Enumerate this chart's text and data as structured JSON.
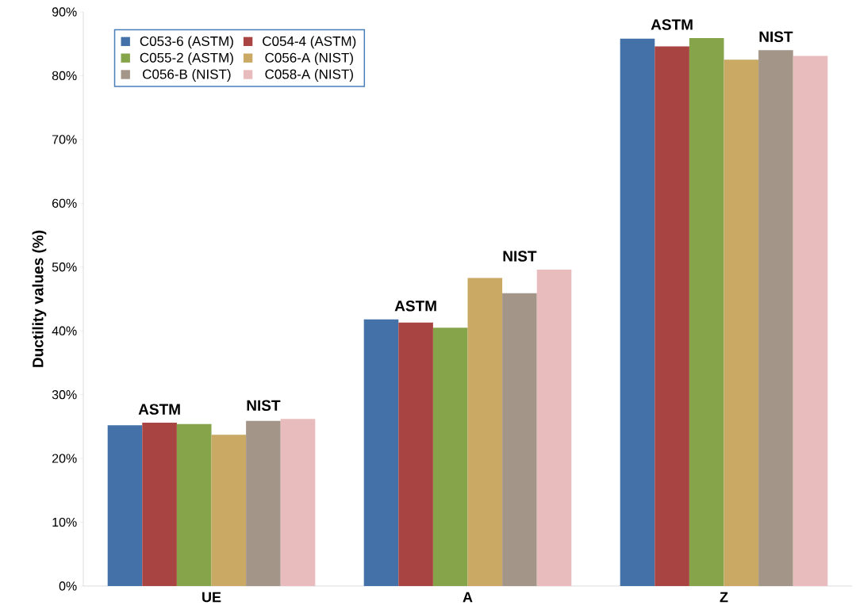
{
  "chart_data": {
    "type": "bar",
    "ylabel": "Ductility values (%)",
    "categories": [
      "UE",
      "A",
      "Z"
    ],
    "series": [
      {
        "name": "C053-6 (ASTM)",
        "color": "#4472a8",
        "values": [
          25.2,
          41.8,
          85.8
        ]
      },
      {
        "name": "C054-4 (ASTM)",
        "color": "#a84442",
        "values": [
          25.6,
          41.3,
          84.6
        ]
      },
      {
        "name": "C055-2 (ASTM)",
        "color": "#86a44a",
        "values": [
          25.4,
          40.5,
          85.9
        ]
      },
      {
        "name": "C056-A (NIST)",
        "color": "#c9a964",
        "values": [
          23.7,
          48.3,
          82.5
        ]
      },
      {
        "name": "C056-B (NIST)",
        "color": "#a39588",
        "values": [
          25.9,
          45.9,
          84.0
        ]
      },
      {
        "name": "C058-A (NIST)",
        "color": "#e8bcbc",
        "values": [
          26.2,
          49.6,
          83.1
        ]
      }
    ],
    "ylim": [
      0,
      90
    ],
    "yticks": [
      {
        "value": 0,
        "label": "0%"
      },
      {
        "value": 10,
        "label": "10%"
      },
      {
        "value": 20,
        "label": "20%"
      },
      {
        "value": 30,
        "label": "30%"
      },
      {
        "value": 40,
        "label": "40%"
      },
      {
        "value": 50,
        "label": "50%"
      },
      {
        "value": 60,
        "label": "60%"
      },
      {
        "value": 70,
        "label": "70%"
      },
      {
        "value": 80,
        "label": "80%"
      },
      {
        "value": 90,
        "label": "90%"
      }
    ],
    "annotations": [
      "ASTM",
      "NIST",
      "ASTM",
      "NIST",
      "ASTM",
      "NIST"
    ],
    "legend": "top left",
    "grid": false
  }
}
